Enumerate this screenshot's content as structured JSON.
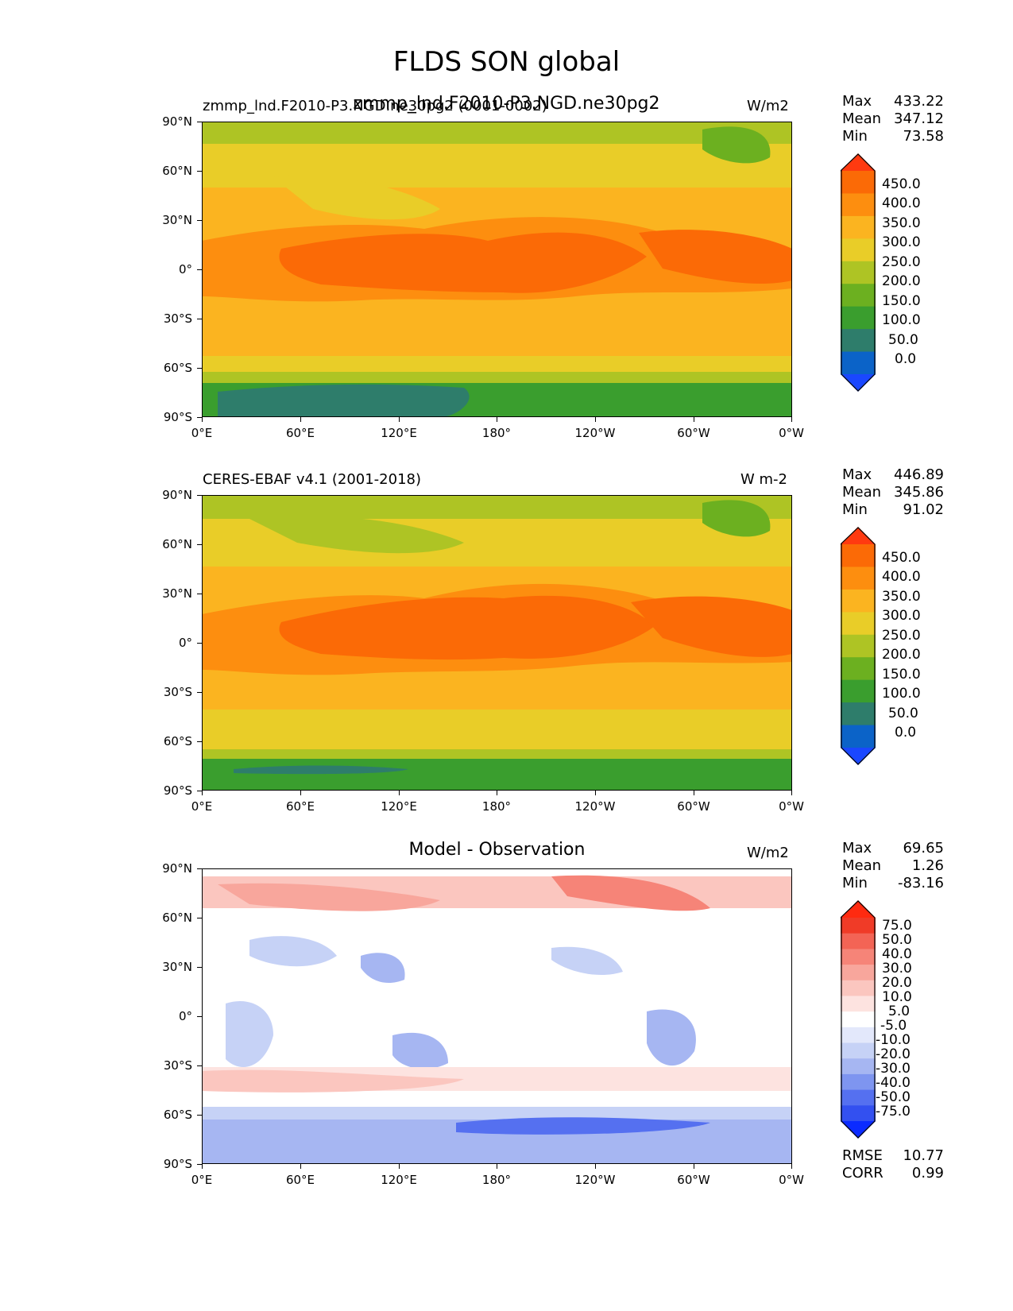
{
  "figure": {
    "title": "FLDS SON global"
  },
  "colors": {
    "abs_scale": [
      "#1a47ff",
      "#0b63c8",
      "#2e7d6b",
      "#3a9e2e",
      "#6cb020",
      "#aec424",
      "#e9cd28",
      "#fbb420",
      "#fd8e0f",
      "#fb6a06",
      "#ff3a10"
    ],
    "diff_scale": [
      "#0b2bff",
      "#3350f0",
      "#5570f0",
      "#7e95f0",
      "#a6b6f2",
      "#c6d2f6",
      "#e3e8fb",
      "#ffffff",
      "#fde3e0",
      "#fbc6bf",
      "#f8a69c",
      "#f68478",
      "#f36455",
      "#f03b27",
      "#ff2a10"
    ]
  },
  "chart_data": [
    {
      "type": "heatmap",
      "name_text": "zmmp_lnd.F2010-P3.NGD.ne30pg2",
      "subtitle_left": "zmmp_lnd.F2010-P3.NGD.ne30pg2 (0001-0002)",
      "units": "W/m2",
      "stats": {
        "max_label": "Max",
        "max": "433.22",
        "mean_label": "Mean",
        "mean": "347.12",
        "min_label": "Min",
        "min": "73.58"
      },
      "colorbar_labels": [
        "450.0",
        "400.0",
        "350.0",
        "300.0",
        "250.0",
        "200.0",
        "150.0",
        "100.0",
        "50.0",
        "0.0"
      ],
      "lat_ticks": [
        "90°N",
        "60°N",
        "30°N",
        "0°",
        "30°S",
        "60°S",
        "90°S"
      ],
      "lon_ticks": [
        "0°E",
        "60°E",
        "120°E",
        "180°",
        "120°W",
        "60°W",
        "0°W"
      ]
    },
    {
      "type": "heatmap",
      "subtitle_left": "CERES-EBAF v4.1 (2001-2018)",
      "units": "W m-2",
      "stats": {
        "max_label": "Max",
        "max": "446.89",
        "mean_label": "Mean",
        "mean": "345.86",
        "min_label": "Min",
        "min": "91.02"
      },
      "colorbar_labels": [
        "450.0",
        "400.0",
        "350.0",
        "300.0",
        "250.0",
        "200.0",
        "150.0",
        "100.0",
        "50.0",
        "0.0"
      ],
      "lat_ticks": [
        "90°N",
        "60°N",
        "30°N",
        "0°",
        "30°S",
        "60°S",
        "90°S"
      ],
      "lon_ticks": [
        "0°E",
        "60°E",
        "120°E",
        "180°",
        "120°W",
        "60°W",
        "0°W"
      ]
    },
    {
      "type": "heatmap",
      "subtitle_center": "Model - Observation",
      "units": "W/m2",
      "stats": {
        "max_label": "Max",
        "max": "69.65",
        "mean_label": "Mean",
        "mean": "1.26",
        "min_label": "Min",
        "min": "-83.16",
        "rmse_label": "RMSE",
        "rmse": "10.77",
        "corr_label": "CORR",
        "corr": "0.99"
      },
      "colorbar_labels": [
        "75.0",
        "50.0",
        "40.0",
        "30.0",
        "20.0",
        "10.0",
        "5.0",
        "-5.0",
        "-10.0",
        "-20.0",
        "-30.0",
        "-40.0",
        "-50.0",
        "-75.0"
      ],
      "lat_ticks": [
        "90°N",
        "60°N",
        "30°N",
        "0°",
        "30°S",
        "60°S",
        "90°S"
      ],
      "lon_ticks": [
        "0°E",
        "60°E",
        "120°E",
        "180°",
        "120°W",
        "60°W",
        "0°W"
      ]
    }
  ]
}
